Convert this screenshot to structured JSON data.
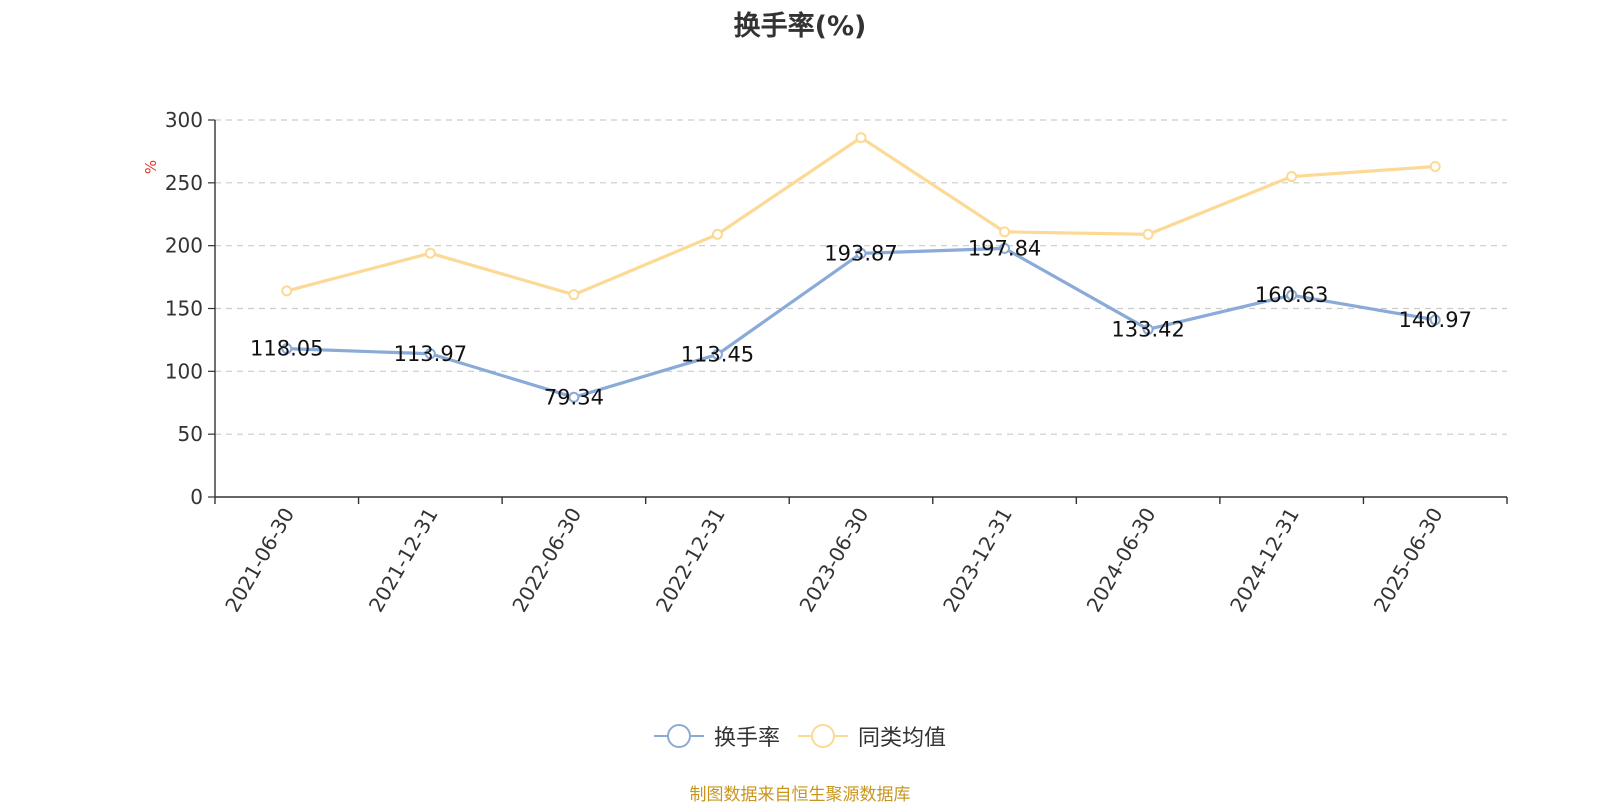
{
  "chart_data": {
    "type": "line",
    "title": "换手率(%)",
    "ylabel": "%",
    "ylim": [
      0,
      300
    ],
    "yticks": [
      "0",
      "50",
      "100",
      "150",
      "200",
      "250",
      "300"
    ],
    "grid": true,
    "legend_position": "bottom-center",
    "categories": [
      "2021-06-30",
      "2021-12-31",
      "2022-06-30",
      "2022-12-31",
      "2023-06-30",
      "2023-12-31",
      "2024-06-30",
      "2024-12-31",
      "2025-06-30"
    ],
    "series": [
      {
        "name": "换手率",
        "color": "#8aaad8",
        "values": [
          118.05,
          113.97,
          79.34,
          113.45,
          193.87,
          197.84,
          133.42,
          160.63,
          140.97
        ],
        "labels": [
          "118.05",
          "113.97",
          "79.34",
          "113.45",
          "193.87",
          "197.84",
          "133.42",
          "160.63",
          "140.97"
        ]
      },
      {
        "name": "同类均值",
        "color": "#fcd995",
        "values": [
          164,
          194,
          161,
          209,
          286,
          211,
          209,
          255,
          263
        ]
      }
    ]
  },
  "legend": {
    "items": [
      {
        "label": "换手率",
        "color": "#8aaad8",
        "icon": "circle-line-icon"
      },
      {
        "label": "同类均值",
        "color": "#fcd995",
        "icon": "circle-line-icon"
      }
    ]
  },
  "source_note": "制图数据来自恒生聚源数据库"
}
